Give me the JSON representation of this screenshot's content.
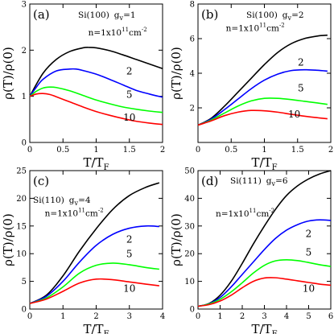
{
  "chart_data": [
    {
      "type": "line",
      "panel_label": "(a)",
      "material": "Si(100)",
      "gv_label": "g",
      "gv_sub": "v",
      "gv_value": "=1",
      "xlabel": "T/T",
      "xlabel_sub": "F",
      "ylabel": "ρ(T)/ρ(0)",
      "xlim": [
        0,
        2
      ],
      "ylim": [
        0,
        3
      ],
      "xticks": [
        0,
        0.5,
        1,
        1.5,
        2
      ],
      "xtick_labels": [
        "0",
        "0.5",
        "1",
        "1.5",
        "2"
      ],
      "yticks": [
        0,
        1,
        2,
        3
      ],
      "ytick_labels": [
        "0",
        "1",
        "2",
        "3"
      ],
      "density_label": {
        "prefix": "n=1x10",
        "exp": "11",
        "unit": "cm",
        "unit_exp": "-2"
      },
      "series": [
        {
          "label": "",
          "color": "#000000",
          "x": [
            0,
            0.2,
            0.4,
            0.6,
            0.8,
            0.9,
            1.0,
            1.2,
            1.4,
            1.6,
            1.8,
            2.0
          ],
          "y": [
            1.0,
            1.5,
            1.8,
            1.97,
            2.05,
            2.06,
            2.05,
            1.99,
            1.9,
            1.8,
            1.7,
            1.6
          ]
        },
        {
          "label": "2",
          "color": "#0000ff",
          "x": [
            0,
            0.1,
            0.2,
            0.4,
            0.6,
            0.7,
            0.8,
            1.0,
            1.2,
            1.4,
            1.6,
            1.8,
            2.0
          ],
          "y": [
            1.0,
            1.2,
            1.37,
            1.55,
            1.59,
            1.59,
            1.56,
            1.48,
            1.37,
            1.25,
            1.13,
            1.05,
            0.98
          ]
        },
        {
          "label": "5",
          "color": "#00ff00",
          "x": [
            0,
            0.1,
            0.2,
            0.3,
            0.4,
            0.6,
            0.8,
            1.0,
            1.2,
            1.4,
            1.6,
            1.8,
            2.0
          ],
          "y": [
            1.0,
            1.11,
            1.18,
            1.2,
            1.19,
            1.12,
            1.02,
            0.92,
            0.84,
            0.77,
            0.72,
            0.68,
            0.65
          ]
        },
        {
          "label": "10",
          "color": "#ff0000",
          "x": [
            0,
            0.1,
            0.2,
            0.3,
            0.4,
            0.6,
            0.8,
            1.0,
            1.2,
            1.4,
            1.6,
            1.8,
            2.0
          ],
          "y": [
            1.0,
            1.05,
            1.06,
            1.04,
            0.99,
            0.88,
            0.77,
            0.67,
            0.59,
            0.52,
            0.46,
            0.42,
            0.39
          ]
        }
      ],
      "series_label_pos": [
        null,
        [
          1.5,
          1.47
        ],
        [
          1.5,
          0.97
        ],
        [
          1.5,
          0.47
        ]
      ],
      "density_label_pos": [
        0.88,
        2.32
      ]
    },
    {
      "type": "line",
      "panel_label": "(b)",
      "material": "Si(100)",
      "gv_label": "g",
      "gv_sub": "v",
      "gv_value": "=2",
      "xlabel": "T/T",
      "xlabel_sub": "F",
      "ylabel": "ρ(T)/ρ(0)",
      "xlim": [
        0,
        2
      ],
      "ylim": [
        0,
        8
      ],
      "xticks": [
        0,
        0.5,
        1,
        1.5,
        2
      ],
      "xtick_labels": [
        "0",
        "0.5",
        "1",
        "1.5",
        "2"
      ],
      "yticks": [
        2,
        4,
        6,
        8
      ],
      "ytick_labels": [
        "2",
        "4",
        "6",
        "8"
      ],
      "density_label": {
        "prefix": "n=1x10",
        "exp": "11",
        "unit": "cm",
        "unit_exp": "-2"
      },
      "series": [
        {
          "label": "",
          "color": "#000000",
          "x": [
            0,
            0.2,
            0.4,
            0.6,
            0.8,
            1.0,
            1.2,
            1.4,
            1.6,
            1.8,
            1.95
          ],
          "y": [
            1.0,
            1.4,
            2.1,
            2.9,
            3.7,
            4.5,
            5.2,
            5.7,
            6.0,
            6.15,
            6.2
          ]
        },
        {
          "label": "2",
          "color": "#0000ff",
          "x": [
            0,
            0.2,
            0.4,
            0.6,
            0.8,
            1.0,
            1.2,
            1.4,
            1.6,
            1.8,
            1.95
          ],
          "y": [
            1.0,
            1.35,
            1.9,
            2.5,
            3.1,
            3.6,
            3.95,
            4.15,
            4.2,
            4.17,
            4.12
          ]
        },
        {
          "label": "5",
          "color": "#00ff00",
          "x": [
            0,
            0.2,
            0.4,
            0.6,
            0.8,
            1.0,
            1.2,
            1.4,
            1.6,
            1.8,
            1.95
          ],
          "y": [
            1.0,
            1.3,
            1.7,
            2.1,
            2.4,
            2.55,
            2.55,
            2.48,
            2.38,
            2.28,
            2.2
          ]
        },
        {
          "label": "10",
          "color": "#ff0000",
          "x": [
            0,
            0.2,
            0.4,
            0.6,
            0.8,
            1.0,
            1.2,
            1.4,
            1.6,
            1.8,
            1.95
          ],
          "y": [
            1.0,
            1.25,
            1.55,
            1.75,
            1.85,
            1.83,
            1.75,
            1.63,
            1.52,
            1.43,
            1.37
          ]
        }
      ],
      "series_label_pos": [
        null,
        [
          1.55,
          4.45
        ],
        [
          1.55,
          2.95
        ],
        [
          1.45,
          1.45
        ]
      ],
      "density_label_pos": [
        0.42,
        6.45
      ]
    },
    {
      "type": "line",
      "panel_label": "(c)",
      "material": "Si(110)",
      "gv_label": "g",
      "gv_sub": "v",
      "gv_value": "=4",
      "xlabel": "T/T",
      "xlabel_sub": "F",
      "ylabel": "ρ(T)/ρ(0)",
      "xlim": [
        0,
        4
      ],
      "ylim": [
        0,
        25
      ],
      "xticks": [
        0,
        1,
        2,
        3,
        4
      ],
      "xtick_labels": [
        "0",
        "1",
        "2",
        "3",
        "4"
      ],
      "yticks": [
        0,
        5,
        10,
        15,
        20,
        25
      ],
      "ytick_labels": [
        "0",
        "5",
        "10",
        "15",
        "20",
        "25"
      ],
      "density_label": {
        "prefix": "n=1x10",
        "exp": "11",
        "unit": "cm",
        "unit_exp": "-2"
      },
      "series": [
        {
          "label": "",
          "color": "#000000",
          "x": [
            0,
            0.5,
            1.0,
            1.5,
            2.0,
            2.5,
            3.0,
            3.5,
            3.9
          ],
          "y": [
            1.0,
            2.5,
            6.0,
            10.5,
            14.5,
            18.0,
            20.5,
            22.0,
            22.8
          ]
        },
        {
          "label": "2",
          "color": "#0000ff",
          "x": [
            0,
            0.5,
            1.0,
            1.5,
            2.0,
            2.5,
            3.0,
            3.5,
            3.9
          ],
          "y": [
            1.0,
            2.3,
            5.0,
            8.5,
            11.5,
            13.5,
            14.6,
            15.0,
            14.9
          ]
        },
        {
          "label": "5",
          "color": "#00ff00",
          "x": [
            0,
            0.5,
            1.0,
            1.5,
            2.0,
            2.5,
            3.0,
            3.5,
            3.9
          ],
          "y": [
            1.0,
            2.0,
            4.0,
            6.5,
            7.9,
            8.3,
            8.0,
            7.5,
            7.2
          ]
        },
        {
          "label": "10",
          "color": "#ff0000",
          "x": [
            0,
            0.5,
            1.0,
            1.5,
            2.0,
            2.5,
            3.0,
            3.5,
            3.9
          ],
          "y": [
            1.0,
            1.8,
            3.2,
            4.7,
            5.4,
            5.3,
            4.9,
            4.5,
            4.2
          ]
        }
      ],
      "series_label_pos": [
        null,
        [
          3.0,
          12.0
        ],
        [
          3.0,
          9.4
        ],
        [
          3.0,
          3.1
        ]
      ],
      "density_label_pos": [
        0.45,
        16.8
      ]
    },
    {
      "type": "line",
      "panel_label": "(d)",
      "material": "Si(111)",
      "gv_label": "g",
      "gv_sub": "v",
      "gv_value": "=6",
      "xlabel": "T/T",
      "xlabel_sub": "F",
      "ylabel": "ρ(T)/ρ(0)",
      "xlim": [
        0,
        6
      ],
      "ylim": [
        0,
        50
      ],
      "xticks": [
        0,
        1,
        2,
        3,
        4,
        5,
        6
      ],
      "xtick_labels": [
        "0",
        "1",
        "2",
        "3",
        "4",
        "5",
        "6"
      ],
      "yticks": [
        0,
        10,
        20,
        30,
        40,
        50
      ],
      "ytick_labels": [
        "0",
        "10",
        "20",
        "30",
        "40",
        "50"
      ],
      "density_label": {
        "prefix": "n=1x10",
        "exp": "11",
        "unit": "cm",
        "unit_exp": "-2"
      },
      "series": [
        {
          "label": "",
          "color": "#000000",
          "x": [
            0,
            0.5,
            1.0,
            1.5,
            2.0,
            2.5,
            3.0,
            3.5,
            4.0,
            4.5,
            5.0,
            5.5,
            6.0
          ],
          "y": [
            1.0,
            2.0,
            5.0,
            10.0,
            16.5,
            23.5,
            30.0,
            36.0,
            41.0,
            44.5,
            47.0,
            48.8,
            50.0
          ]
        },
        {
          "label": "2",
          "color": "#0000ff",
          "x": [
            0,
            0.5,
            1.0,
            1.5,
            2.0,
            2.5,
            3.0,
            3.5,
            4.0,
            4.5,
            5.0,
            5.5,
            6.0
          ],
          "y": [
            1.0,
            1.9,
            4.2,
            8.0,
            12.5,
            17.0,
            21.5,
            25.5,
            28.5,
            30.5,
            31.8,
            32.2,
            32.0
          ]
        },
        {
          "label": "5",
          "color": "#00ff00",
          "x": [
            0,
            0.5,
            1.0,
            1.5,
            2.0,
            2.5,
            3.0,
            3.5,
            4.0,
            4.5,
            5.0,
            5.5,
            6.0
          ],
          "y": [
            1.0,
            1.8,
            3.5,
            6.2,
            9.5,
            13.0,
            15.8,
            17.4,
            17.8,
            17.5,
            16.8,
            16.0,
            15.4
          ]
        },
        {
          "label": "10",
          "color": "#ff0000",
          "x": [
            0,
            0.5,
            1.0,
            1.5,
            2.0,
            2.5,
            3.0,
            3.5,
            4.0,
            4.5,
            5.0,
            5.5,
            6.0
          ],
          "y": [
            1.0,
            1.6,
            2.9,
            5.0,
            7.7,
            10.0,
            11.2,
            11.3,
            10.8,
            10.2,
            9.6,
            9.0,
            8.6
          ]
        }
      ],
      "series_label_pos": [
        null,
        [
          5.0,
          26.0
        ],
        [
          5.0,
          19.3
        ],
        [
          5.0,
          6.2
        ]
      ],
      "density_label_pos": [
        0.8,
        33.5
      ]
    }
  ]
}
